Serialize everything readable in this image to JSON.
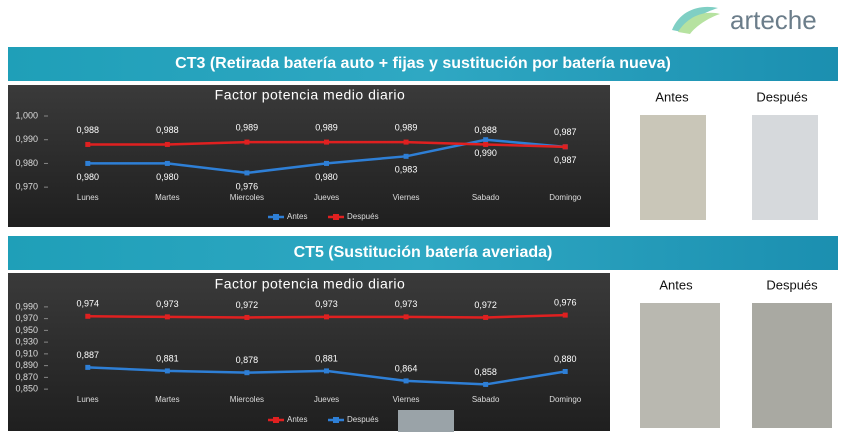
{
  "logo": "arteche",
  "sections": [
    {
      "title": "CT3 (Retirada batería auto + fijas y sustitución por batería nueva)",
      "photo_labels": [
        "Antes",
        "Después"
      ]
    },
    {
      "title": "CT5 (Sustitución batería averiada)",
      "photo_labels": [
        "Antes",
        "Después"
      ]
    }
  ],
  "chart_data": [
    {
      "type": "line",
      "title": "Factor potencia medio diario",
      "categories": [
        "Lunes",
        "Martes",
        "Miercoles",
        "Jueves",
        "Viernes",
        "Sabado",
        "Domingo"
      ],
      "series": [
        {
          "name": "Antes",
          "color": "#2e7fd6",
          "values": [
            0.98,
            0.98,
            0.976,
            0.98,
            0.983,
            0.99,
            0.987
          ],
          "value_labels": [
            "0,980",
            "0,980",
            "0,976",
            "0,980",
            "0,983",
            "0,990",
            "0,987"
          ]
        },
        {
          "name": "Después",
          "color": "#e02020",
          "values": [
            0.988,
            0.988,
            0.989,
            0.989,
            0.989,
            0.988,
            0.987
          ],
          "value_labels": [
            "0,988",
            "0,988",
            "0,989",
            "0,989",
            "0,989",
            "0,988",
            "0,987"
          ]
        }
      ],
      "ylim": [
        0.965,
        1.0
      ],
      "yticks": [
        {
          "value": 0.97,
          "label": "0,970"
        },
        {
          "value": 0.98,
          "label": "0,980"
        },
        {
          "value": 0.99,
          "label": "0,990"
        },
        {
          "value": 1.0,
          "label": "1,000"
        }
      ],
      "legend": "bottom"
    },
    {
      "type": "line",
      "title": "Factor potencia medio diario",
      "categories": [
        "Lunes",
        "Martes",
        "Miercoles",
        "Jueves",
        "Viernes",
        "Sabado",
        "Domingo"
      ],
      "series": [
        {
          "name": "Antes",
          "color": "#e02020",
          "values": [
            0.974,
            0.973,
            0.972,
            0.973,
            0.973,
            0.972,
            0.976
          ],
          "value_labels": [
            "0,974",
            "0,973",
            "0,972",
            "0,973",
            "0,973",
            "0,972",
            "0,976"
          ]
        },
        {
          "name": "Después",
          "color": "#2e7fd6",
          "values": [
            0.887,
            0.881,
            0.878,
            0.881,
            0.864,
            0.858,
            0.88
          ],
          "value_labels": [
            "0,887",
            "0,881",
            "0,878",
            "0,881",
            "0,864",
            "0,858",
            "0,880"
          ]
        }
      ],
      "ylim": [
        0.84,
        1.0
      ],
      "yticks": [
        {
          "value": 0.85,
          "label": "0,850"
        },
        {
          "value": 0.87,
          "label": "0,870"
        },
        {
          "value": 0.89,
          "label": "0,890"
        },
        {
          "value": 0.91,
          "label": "0,910"
        },
        {
          "value": 0.93,
          "label": "0,930"
        },
        {
          "value": 0.95,
          "label": "0,950"
        },
        {
          "value": 0.97,
          "label": "0,970"
        },
        {
          "value": 0.99,
          "label": "0,990"
        }
      ],
      "legend": "bottom"
    }
  ]
}
